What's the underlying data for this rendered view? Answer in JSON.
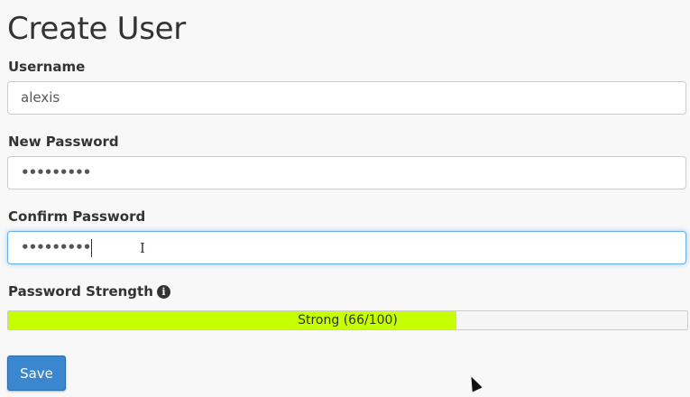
{
  "page": {
    "title": "Create User"
  },
  "form": {
    "username": {
      "label": "Username",
      "value": "alexis"
    },
    "new_password": {
      "label": "New Password",
      "value": "•••••••••"
    },
    "confirm_password": {
      "label": "Confirm Password",
      "value": "•••••••••"
    },
    "strength": {
      "label": "Password Strength",
      "info_icon": "info-circle-icon",
      "text": "Strong (66/100)",
      "percent": 66,
      "color": "#c5ff00"
    },
    "save_label": "Save"
  },
  "colors": {
    "primary": "#3a87d0",
    "background": "#f8f8f8"
  }
}
